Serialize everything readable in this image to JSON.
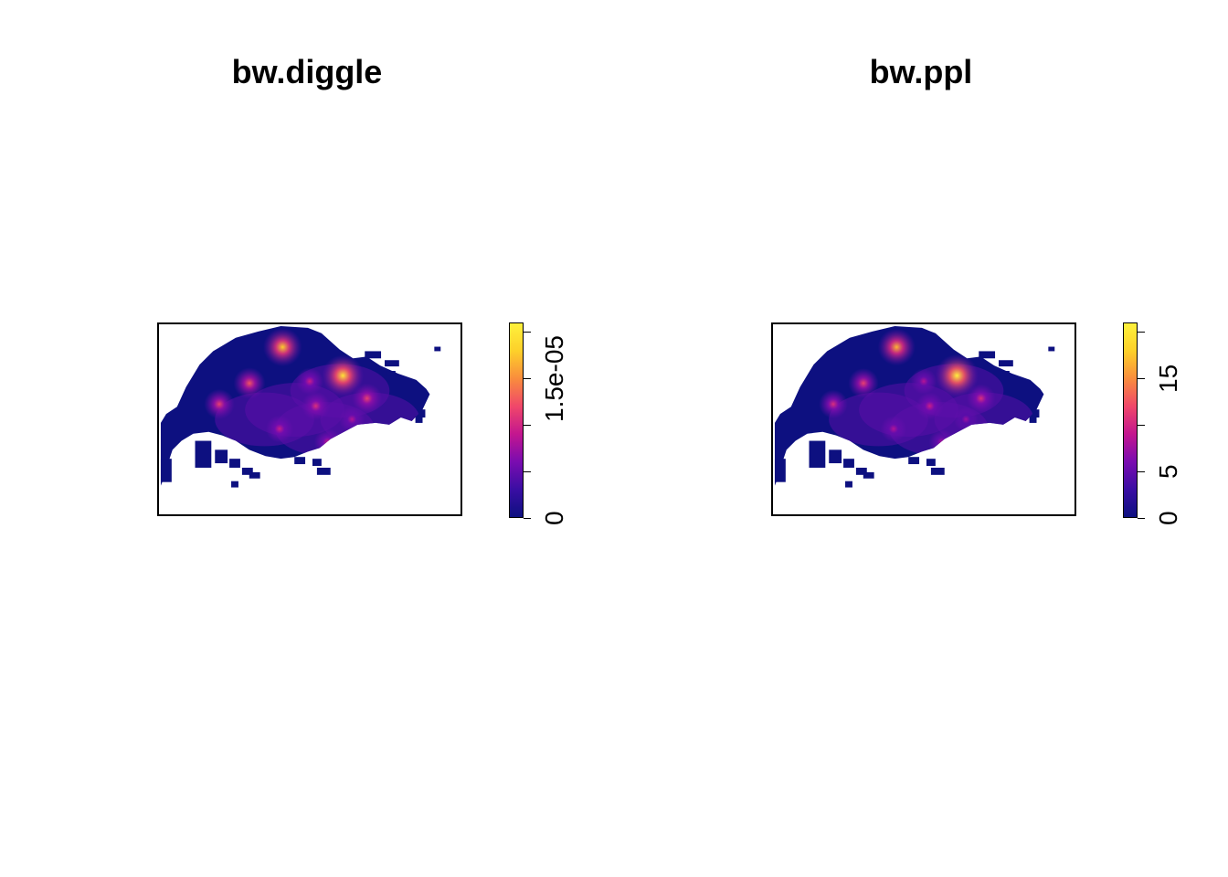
{
  "chart_data": [
    {
      "type": "heatmap",
      "title": "bw.diggle",
      "colorbar": {
        "min": 0,
        "max": 2.1e-05,
        "ticks": [
          0,
          5e-06,
          1e-05,
          1.5e-05,
          2e-05
        ],
        "tick_labels": [
          "0",
          "1.5e-05"
        ],
        "colors": [
          "#0d1080",
          "#3a0ea3",
          "#7a0cb0",
          "#c3168f",
          "#f0476a",
          "#f98c3d",
          "#fdd02a",
          "#fef13c"
        ]
      },
      "hotspots": [
        {
          "x": 0.41,
          "y": 0.12,
          "v": 0.85
        },
        {
          "x": 0.61,
          "y": 0.27,
          "v": 0.95
        },
        {
          "x": 0.3,
          "y": 0.31,
          "v": 0.6
        },
        {
          "x": 0.2,
          "y": 0.42,
          "v": 0.55
        },
        {
          "x": 0.52,
          "y": 0.43,
          "v": 0.5
        },
        {
          "x": 0.69,
          "y": 0.39,
          "v": 0.55
        },
        {
          "x": 0.4,
          "y": 0.55,
          "v": 0.45
        },
        {
          "x": 0.56,
          "y": 0.62,
          "v": 0.45
        },
        {
          "x": 0.5,
          "y": 0.3,
          "v": 0.45
        },
        {
          "x": 0.64,
          "y": 0.5,
          "v": 0.4
        }
      ]
    },
    {
      "type": "heatmap",
      "title": "bw.ppl",
      "colorbar": {
        "min": 0,
        "max": 21,
        "ticks": [
          0,
          5,
          10,
          15,
          20
        ],
        "tick_labels": [
          "0",
          "5",
          "15"
        ],
        "colors": [
          "#0d1080",
          "#3a0ea3",
          "#7a0cb0",
          "#c3168f",
          "#f0476a",
          "#f98c3d",
          "#fdd02a",
          "#fef13c"
        ]
      },
      "hotspots": [
        {
          "x": 0.41,
          "y": 0.12,
          "v": 0.8
        },
        {
          "x": 0.61,
          "y": 0.27,
          "v": 1.0
        },
        {
          "x": 0.3,
          "y": 0.31,
          "v": 0.55
        },
        {
          "x": 0.2,
          "y": 0.42,
          "v": 0.5
        },
        {
          "x": 0.52,
          "y": 0.43,
          "v": 0.45
        },
        {
          "x": 0.69,
          "y": 0.39,
          "v": 0.5
        },
        {
          "x": 0.4,
          "y": 0.55,
          "v": 0.4
        },
        {
          "x": 0.56,
          "y": 0.62,
          "v": 0.4
        },
        {
          "x": 0.5,
          "y": 0.3,
          "v": 0.4
        },
        {
          "x": 0.64,
          "y": 0.5,
          "v": 0.35
        }
      ]
    }
  ]
}
